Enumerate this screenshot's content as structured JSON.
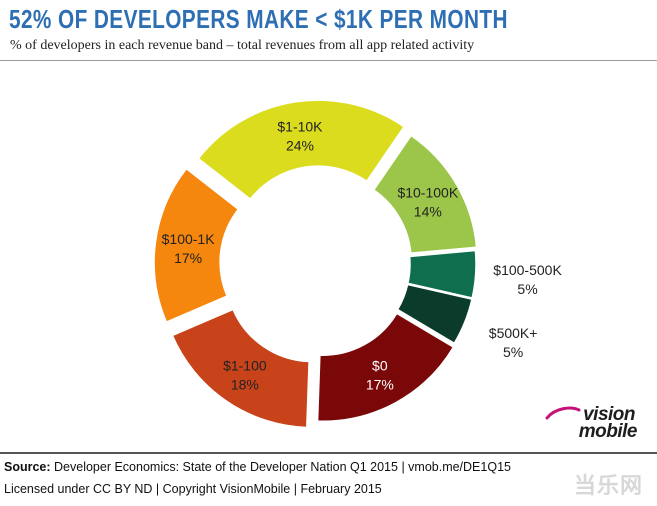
{
  "header": {
    "title": "52% OF DEVELOPERS MAKE < $1K PER MONTH",
    "subtitle": "% of developers in each revenue band – total revenues from all app related activity"
  },
  "chart_data": {
    "type": "pie",
    "variant": "exploded-donut",
    "title": "52% OF DEVELOPERS MAKE < $1K PER MONTH",
    "subtitle": "% of developers in each revenue band – total revenues from all app related activity",
    "categories": [
      "$1-10K",
      "$10-100K",
      "$100-500K",
      "$500K+",
      "$0",
      "$1-100",
      "$100-1K"
    ],
    "values": [
      24,
      14,
      5,
      5,
      17,
      18,
      17
    ],
    "value_labels": [
      "24%",
      "14%",
      "5%",
      "5%",
      "17%",
      "18%",
      "17%"
    ],
    "colors": [
      "#dcdc1e",
      "#9cc64a",
      "#0f6e4e",
      "#0b3b2a",
      "#7a0808",
      "#c8431a",
      "#f5860e"
    ],
    "label_colors": [
      "#222222",
      "#222222",
      "#222222",
      "#222222",
      "#ffffff",
      "#222222",
      "#222222"
    ]
  },
  "footer": {
    "source_label": "Source:",
    "source_text": " Developer Economics: State of the Developer Nation Q1 2015 | vmob.me/DE1Q15",
    "license_text": "Licensed under CC BY ND | Copyright VisionMobile | February 2015",
    "watermark": "当乐网"
  },
  "logo": {
    "line1": "vision",
    "line2": "mobile"
  }
}
